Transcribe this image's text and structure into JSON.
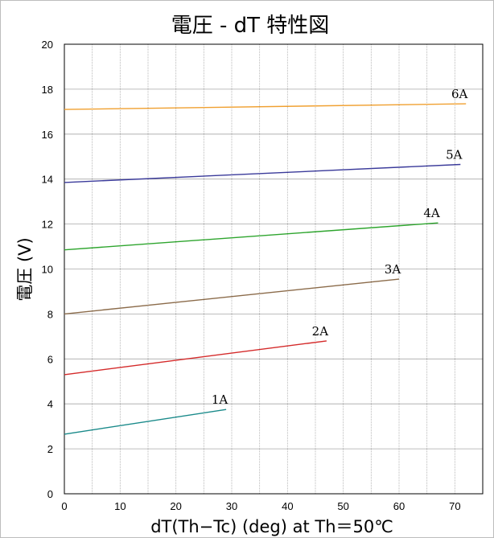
{
  "chart_data": {
    "type": "line",
    "title": "電圧 - dT 特性図",
    "xlabel": "dT(Th−Tc) (deg) at Th＝50℃",
    "ylabel": "電圧 (V)",
    "xlim": [
      0,
      75
    ],
    "ylim": [
      0,
      20
    ],
    "x_ticks": [
      0,
      10,
      20,
      30,
      40,
      50,
      60,
      70
    ],
    "y_ticks": [
      0,
      2,
      4,
      6,
      8,
      10,
      12,
      14,
      16,
      18,
      20
    ],
    "x_grid_step": 5,
    "y_grid_step": 2,
    "grid": true,
    "legend": "inline labels at line ends",
    "series": [
      {
        "name": "1A",
        "color": "#1a8a8a",
        "points": [
          [
            0,
            2.65
          ],
          [
            29,
            3.75
          ]
        ]
      },
      {
        "name": "2A",
        "color": "#d42a2a",
        "points": [
          [
            0,
            5.3
          ],
          [
            47,
            6.8
          ]
        ]
      },
      {
        "name": "3A",
        "color": "#8b6b4a",
        "points": [
          [
            0,
            8.0
          ],
          [
            60,
            9.55
          ]
        ]
      },
      {
        "name": "4A",
        "color": "#2ea52e",
        "points": [
          [
            0,
            10.85
          ],
          [
            67,
            12.05
          ]
        ]
      },
      {
        "name": "5A",
        "color": "#3a3a9a",
        "points": [
          [
            0,
            13.85
          ],
          [
            71,
            14.65
          ]
        ]
      },
      {
        "name": "6A",
        "color": "#f0a030",
        "points": [
          [
            0,
            17.1
          ],
          [
            72,
            17.35
          ]
        ]
      }
    ]
  }
}
